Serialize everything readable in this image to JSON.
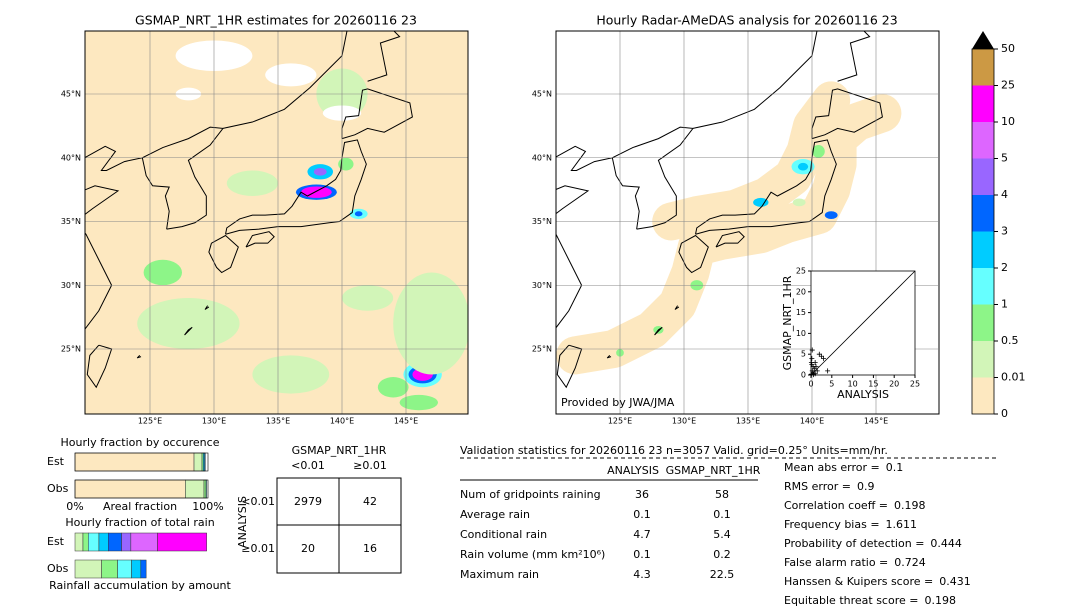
{
  "maps": [
    {
      "title": "GSMAP_NRT_1HR estimates for 20260116 23",
      "xticks": [
        "125°E",
        "130°E",
        "135°E",
        "140°E",
        "145°E"
      ],
      "yticks": [
        "45°N",
        "40°N",
        "35°N",
        "30°N",
        "25°N"
      ]
    },
    {
      "title": "Hourly Radar-AMeDAS analysis for 20260116 23",
      "xticks": [
        "125°E",
        "130°E",
        "135°E",
        "140°E",
        "145°E"
      ],
      "yticks": [
        "45°N",
        "40°N",
        "35°N",
        "30°N",
        "25°N"
      ],
      "credit": "Provided by JWA/JMA"
    }
  ],
  "colorbar": {
    "levels": [
      0,
      0.01,
      0.5,
      1,
      2,
      3,
      4,
      5,
      10,
      25,
      50
    ],
    "colors": [
      "#fde8c0",
      "#d2f5b8",
      "#8df588",
      "#66ffff",
      "#00ccff",
      "#0066ff",
      "#9966ff",
      "#dd66ff",
      "#ff00ff",
      "#cc9944"
    ],
    "extend_color": "#000000"
  },
  "chart_data": [
    {
      "type": "scatter",
      "xlabel": "ANALYSIS",
      "ylabel": "GSMAP_NRT_1HR",
      "x": [
        0.1,
        0.3,
        0.5,
        1.0,
        0.2,
        1.5,
        2.0,
        0.5,
        3.0,
        2.5,
        1.0,
        0.2,
        0.8,
        4.0,
        0.1,
        0.6,
        1.2,
        0.3
      ],
      "y": [
        0.2,
        1.0,
        2.0,
        3.0,
        4.0,
        1.0,
        5.0,
        0.5,
        4.0,
        4.5,
        0.3,
        2.5,
        1.5,
        1.0,
        3.0,
        0.1,
        2.0,
        6.0
      ],
      "xlim": [
        0,
        25
      ],
      "ylim": [
        0,
        25
      ],
      "xticks": [
        0,
        5,
        10,
        15,
        20,
        25
      ],
      "yticks": [
        0,
        5,
        10,
        15,
        20,
        25
      ],
      "color": "#000000"
    },
    {
      "type": "stacked-bar",
      "title": "Hourly fraction by occurence",
      "xlabel": "Areal fraction",
      "categories": [
        "Est",
        "Obs"
      ],
      "stacks": [
        [
          0.895,
          0.06,
          0.01,
          0.01,
          0.005
        ],
        [
          0.83,
          0.14,
          0.015,
          0.005
        ]
      ],
      "stack_colors": [
        [
          "#fde8c0",
          "#d2f5b8",
          "#8df588",
          "#00ccff",
          "#0066ff"
        ],
        [
          "#fde8c0",
          "#d2f5b8",
          "#8df588",
          "#66ffff"
        ]
      ],
      "xlim": [
        0,
        1
      ],
      "xticks": [
        {
          "value": 0,
          "label": "0%"
        },
        {
          "value": 1,
          "label": "100%"
        }
      ]
    },
    {
      "type": "stacked-bar",
      "title": "Hourly fraction of total rain",
      "xlabel": "Rainfall accumulation by amount",
      "categories": [
        "Est",
        "Obs"
      ],
      "stacks": [
        [
          0.06,
          0.04,
          0.08,
          0.07,
          0.1,
          0.07,
          0.2,
          0.37
        ],
        [
          0.2,
          0.12,
          0.105,
          0.07,
          0.04
        ]
      ],
      "stack_colors": [
        [
          "#d2f5b8",
          "#8df588",
          "#66ffff",
          "#00ccff",
          "#0066ff",
          "#9966ff",
          "#dd66ff",
          "#ff00ff"
        ],
        [
          "#d2f5b8",
          "#8df588",
          "#66ffff",
          "#00ccff",
          "#0066ff"
        ]
      ],
      "xlim": [
        0,
        1
      ]
    }
  ],
  "contingency": {
    "title": "GSMAP_NRT_1HR",
    "columns": [
      "<0.01",
      "≥0.01"
    ],
    "row_title": "ANALYSIS",
    "rows": [
      "<0.01",
      "≥0.01"
    ],
    "cells": [
      [
        2979,
        42
      ],
      [
        20,
        16
      ]
    ]
  },
  "stats": {
    "title": "Validation statistics for 20260116 23  n=3057 Valid. grid=0.25° Units=mm/hr.",
    "columns": [
      "ANALYSIS",
      "GSMAP_NRT_1HR"
    ],
    "rows": [
      {
        "label": "Num of gridpoints raining",
        "values": [
          36,
          58
        ]
      },
      {
        "label": "Average rain",
        "values": [
          0.1,
          0.1
        ]
      },
      {
        "label": "Conditional rain",
        "values": [
          4.7,
          5.4
        ]
      },
      {
        "label": "Rain volume (mm km²10⁶)",
        "values": [
          0.1,
          0.2
        ]
      },
      {
        "label": "Maximum rain",
        "values": [
          4.3,
          22.5
        ]
      }
    ],
    "scores": [
      {
        "label": "Mean abs error =",
        "value": 0.1
      },
      {
        "label": "RMS error =",
        "value": 0.9
      },
      {
        "label": "Correlation coeff =",
        "value": 0.198
      },
      {
        "label": "Frequency bias =",
        "value": 1.611
      },
      {
        "label": "Probability of detection =",
        "value": 0.444
      },
      {
        "label": "False alarm ratio =",
        "value": 0.724
      },
      {
        "label": "Hanssen & Kuipers score =",
        "value": 0.431
      },
      {
        "label": "Equitable threat score =",
        "value": 0.198
      }
    ]
  }
}
